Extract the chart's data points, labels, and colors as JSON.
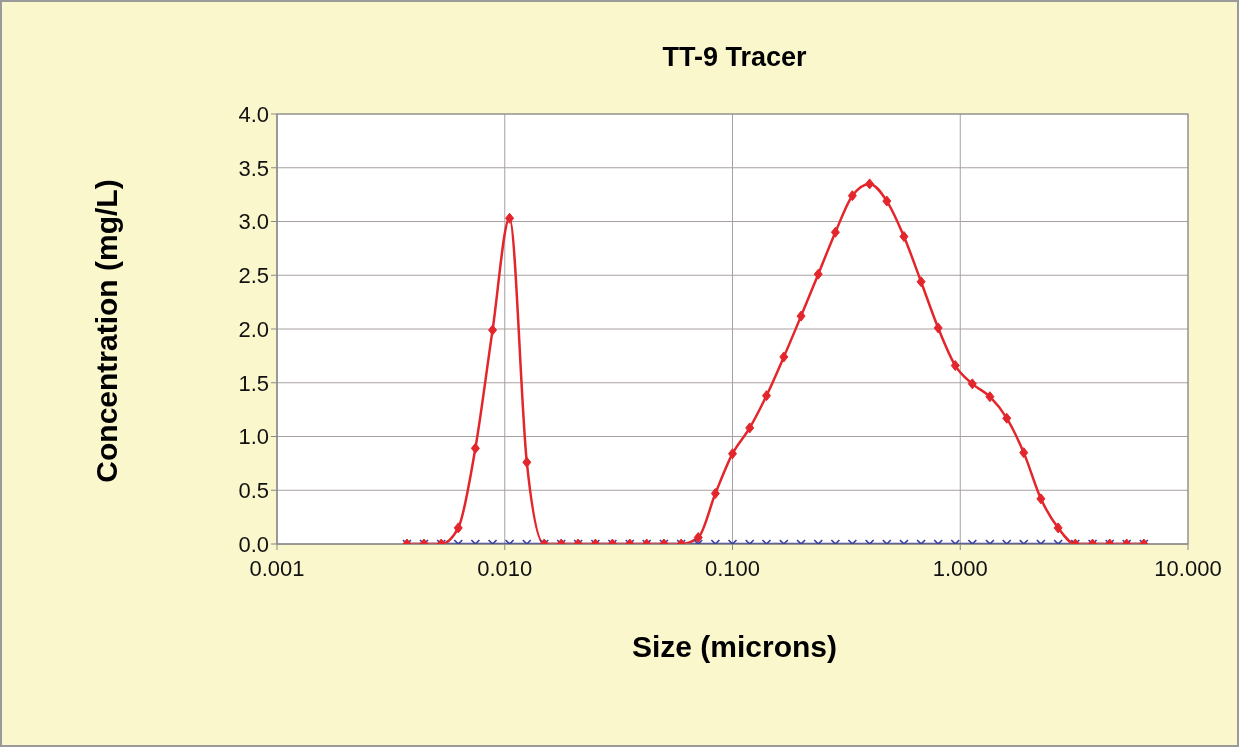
{
  "chart_data": {
    "type": "line",
    "title": "TT-9 Tracer",
    "xlabel": "Size (microns)",
    "ylabel": "Concentration (mg/L)",
    "x": [
      0.00372,
      0.00442,
      0.00526,
      0.00625,
      0.00743,
      0.00884,
      0.0105,
      0.0125,
      0.0149,
      0.0177,
      0.021,
      0.025,
      0.0297,
      0.0354,
      0.042,
      0.05,
      0.0595,
      0.0707,
      0.0841,
      0.1,
      0.119,
      0.141,
      0.168,
      0.2,
      0.238,
      0.283,
      0.336,
      0.4,
      0.476,
      0.566,
      0.673,
      0.8,
      0.951,
      1.13,
      1.35,
      1.6,
      1.9,
      2.26,
      2.69,
      3.2,
      3.81,
      4.53,
      5.38,
      6.4
    ],
    "series": [
      {
        "color": "#3a3f9e",
        "marker": "cross",
        "values": [
          0,
          0,
          0,
          0,
          0,
          0,
          0,
          0,
          0,
          0,
          0,
          0,
          0,
          0,
          0,
          0,
          0,
          0,
          0,
          0,
          0,
          0,
          0,
          0,
          0,
          0,
          0,
          0,
          0,
          0,
          0,
          0,
          0,
          0,
          0,
          0,
          0,
          0,
          0,
          0,
          0,
          0,
          0,
          0
        ]
      },
      {
        "color": "#e3262b",
        "marker": "diamond",
        "values": [
          0,
          0,
          0,
          0.15,
          0.89,
          1.99,
          3.03,
          0.76,
          0,
          0,
          0,
          0,
          0,
          0,
          0,
          0,
          0,
          0.06,
          0.47,
          0.84,
          1.08,
          1.38,
          1.74,
          2.12,
          2.51,
          2.9,
          3.24,
          3.35,
          3.19,
          2.86,
          2.44,
          2.01,
          1.66,
          1.49,
          1.37,
          1.17,
          0.85,
          0.42,
          0.15,
          0,
          0,
          0,
          0,
          0
        ]
      }
    ],
    "log": "x",
    "xlim": [
      0.001,
      10
    ],
    "xticks": [
      {
        "value": 0.001,
        "label": "0.001"
      },
      {
        "value": 0.01,
        "label": "0.010"
      },
      {
        "value": 0.1,
        "label": "0.100"
      },
      {
        "value": 1,
        "label": "1.000"
      },
      {
        "value": 10,
        "label": "10.000"
      }
    ],
    "ylim": [
      0,
      4
    ],
    "yticks": [
      {
        "value": 0,
        "label": "0.0"
      },
      {
        "value": 0.5,
        "label": "0.5"
      },
      {
        "value": 1,
        "label": "1.0"
      },
      {
        "value": 1.5,
        "label": "1.5"
      },
      {
        "value": 2,
        "label": "2.0"
      },
      {
        "value": 2.5,
        "label": "2.5"
      },
      {
        "value": 3,
        "label": "3.0"
      },
      {
        "value": 3.5,
        "label": "3.5"
      },
      {
        "value": 4,
        "label": "4.0"
      }
    ],
    "grid": true
  }
}
